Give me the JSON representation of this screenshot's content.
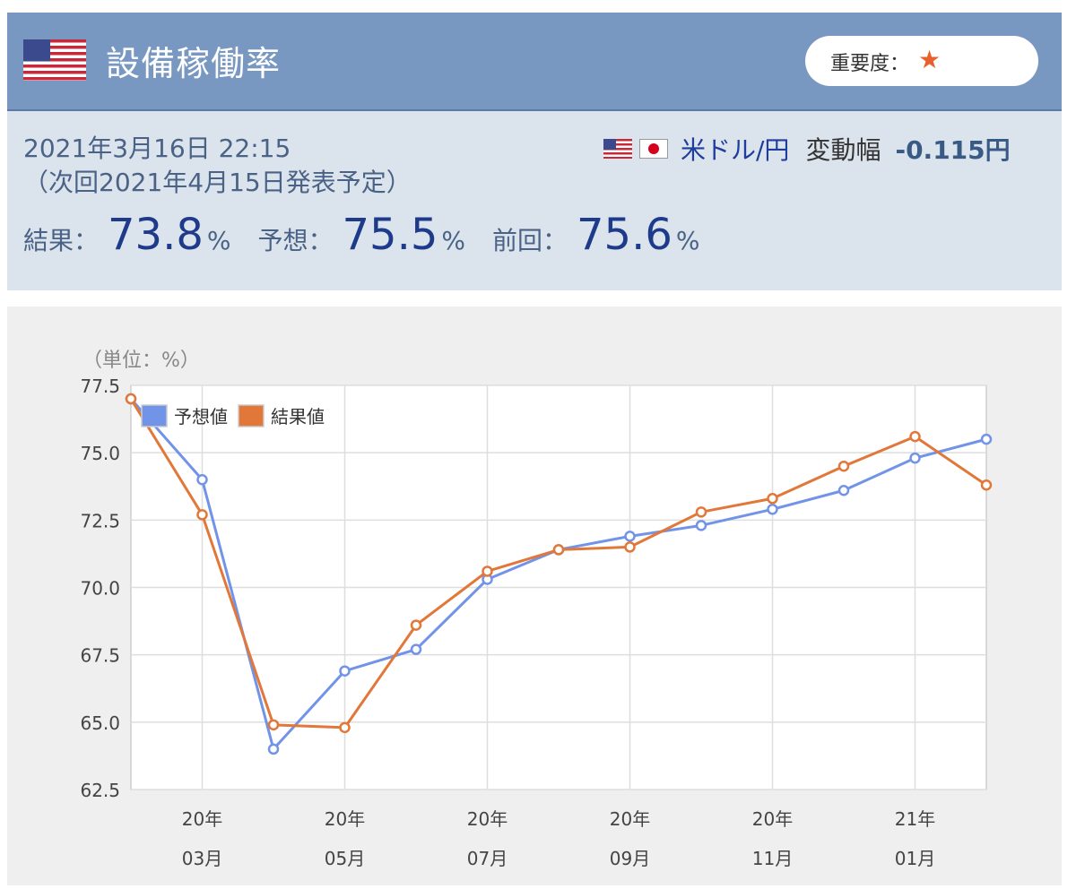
{
  "header": {
    "title": "設備稼働率",
    "importance_label": "重要度：",
    "importance_star": "★",
    "flag": "us-flag-icon"
  },
  "info": {
    "date": "2021年3月16日 22:15",
    "next": "（次回2021年4月15日発表予定）",
    "pair": "米ドル/円",
    "range_label": "変動幅",
    "range_value": "-0.115円",
    "stats": [
      {
        "label": "結果：",
        "value": "73.8",
        "unit": "%"
      },
      {
        "label": "予想：",
        "value": "75.5",
        "unit": "%"
      },
      {
        "label": "前回：",
        "value": "75.6",
        "unit": "%"
      }
    ]
  },
  "colors": {
    "header_bg": "#7898c2",
    "info_bg": "#dbe3ec",
    "forecast": "#7193e8",
    "actual": "#e1783a"
  },
  "chart_data": {
    "type": "line",
    "unit_label": "（単位：%）",
    "ylim": [
      62.5,
      77.5
    ],
    "yticks": [
      "77.5",
      "75.0",
      "72.5",
      "70.0",
      "67.5",
      "65.0",
      "62.5"
    ],
    "x_tick_labels": [
      {
        "year": "20年",
        "month": "03月"
      },
      {
        "year": "20年",
        "month": "05月"
      },
      {
        "year": "20年",
        "month": "07月"
      },
      {
        "year": "20年",
        "month": "09月"
      },
      {
        "year": "20年",
        "month": "11月"
      },
      {
        "year": "21年",
        "month": "01月"
      }
    ],
    "x": [
      "2020-02",
      "2020-03",
      "2020-04",
      "2020-05",
      "2020-06",
      "2020-07",
      "2020-08",
      "2020-09",
      "2020-10",
      "2020-11",
      "2020-12",
      "2021-01",
      "2021-02"
    ],
    "series": [
      {
        "name": "予想値",
        "color": "#7193e8",
        "values": [
          77.0,
          74.0,
          64.0,
          66.9,
          67.7,
          70.3,
          71.4,
          71.9,
          72.3,
          72.9,
          73.6,
          74.8,
          75.5
        ]
      },
      {
        "name": "結果値",
        "color": "#e1783a",
        "values": [
          77.0,
          72.7,
          64.9,
          64.8,
          68.6,
          70.6,
          71.4,
          71.5,
          72.8,
          73.3,
          74.5,
          75.6,
          73.8
        ]
      }
    ],
    "grid": true,
    "legend": "top-left"
  }
}
